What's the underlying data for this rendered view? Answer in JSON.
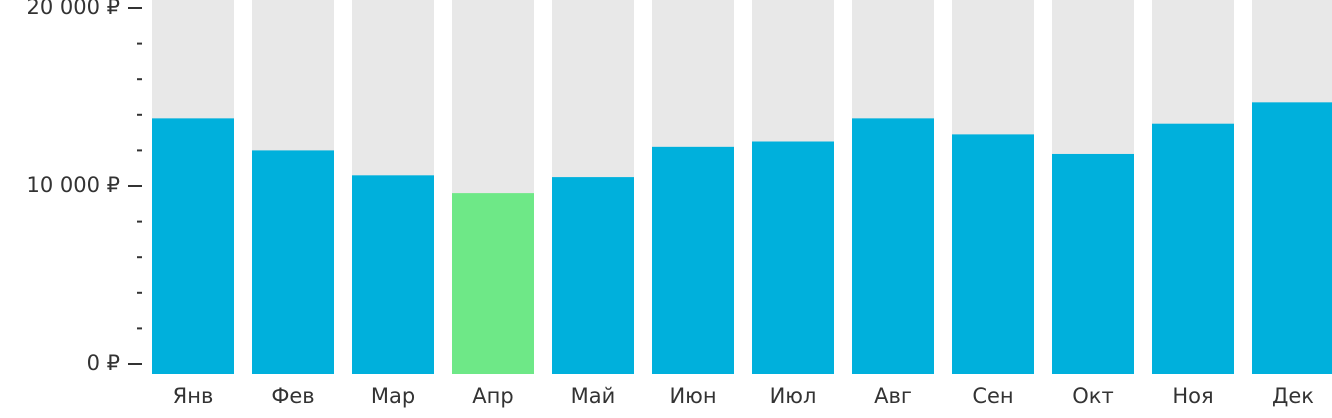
{
  "chart_data": {
    "type": "bar",
    "categories": [
      "Янв",
      "Фев",
      "Мар",
      "Апр",
      "Май",
      "Июн",
      "Июл",
      "Авг",
      "Сен",
      "Окт",
      "Ноя",
      "Дек"
    ],
    "values": [
      13800,
      12000,
      10600,
      9600,
      10500,
      12200,
      12500,
      13800,
      12900,
      11800,
      13500,
      14700
    ],
    "colors": [
      "#00b0dc",
      "#00b0dc",
      "#00b0dc",
      "#6ee887",
      "#00b0dc",
      "#00b0dc",
      "#00b0dc",
      "#00b0dc",
      "#00b0dc",
      "#00b0dc",
      "#00b0dc",
      "#00b0dc"
    ],
    "ylim": [
      0,
      20000
    ],
    "yticks": [
      {
        "value": 0,
        "label": "0 ₽"
      },
      {
        "value": 10000,
        "label": "10 000 ₽"
      },
      {
        "value": 20000,
        "label": "20 000 ₽"
      }
    ],
    "minor_yticks": [
      2000,
      4000,
      6000,
      8000,
      12000,
      14000,
      16000,
      18000
    ]
  }
}
